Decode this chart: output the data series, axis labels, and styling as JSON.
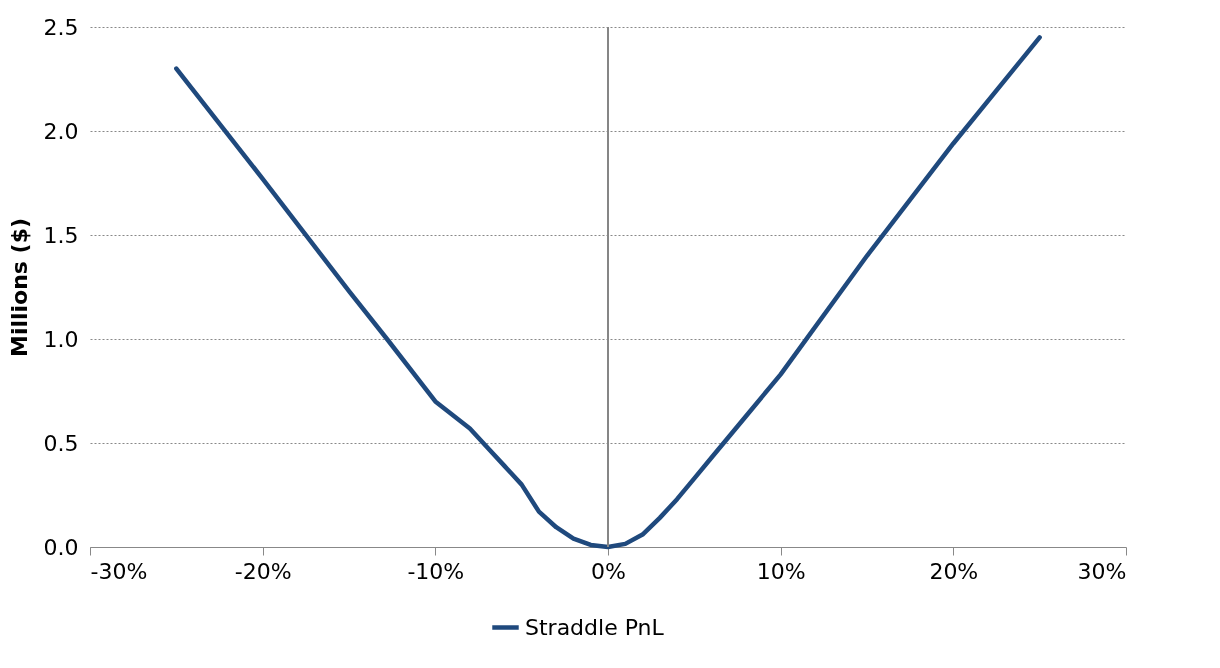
{
  "chart_data": {
    "type": "line",
    "ylabel": "Millions ($)",
    "x": [
      -25,
      -20,
      -15,
      -12.8,
      -10,
      -8,
      -7,
      -6,
      -5,
      -4,
      -3,
      -2,
      -1,
      0,
      1,
      2,
      3,
      4,
      5,
      6,
      7,
      8,
      10,
      15,
      20,
      25
    ],
    "series": [
      {
        "name": "Straddle PnL",
        "color": "#1f497d",
        "values": [
          2.3,
          1.77,
          1.23,
          1.0,
          0.7,
          0.57,
          0.48,
          0.39,
          0.3,
          0.17,
          0.095,
          0.04,
          0.01,
          0,
          0.015,
          0.06,
          0.14,
          0.23,
          0.33,
          0.43,
          0.53,
          0.63,
          0.83,
          1.4,
          1.94,
          2.45
        ]
      }
    ],
    "xlim": [
      -30,
      30
    ],
    "xticks": [
      {
        "value": -30,
        "label": "-30%"
      },
      {
        "value": -20,
        "label": "-20%"
      },
      {
        "value": -10,
        "label": "-10%"
      },
      {
        "value": 0,
        "label": "0%"
      },
      {
        "value": 10,
        "label": "10%"
      },
      {
        "value": 20,
        "label": "20%"
      },
      {
        "value": 30,
        "label": "30%"
      }
    ],
    "ylim": [
      0,
      2.5
    ],
    "yticks": [
      {
        "value": 0,
        "label": "0.0"
      },
      0.5,
      {
        "value": 1,
        "label": "1.0"
      },
      1.5,
      {
        "value": 2,
        "label": "2.0"
      },
      2.5
    ],
    "ref_lines": [
      {
        "axis": "x",
        "value": 0,
        "color": "#868686"
      }
    ],
    "grid": "y",
    "legend": "bottom",
    "line_style": "solid",
    "marker": "none"
  }
}
